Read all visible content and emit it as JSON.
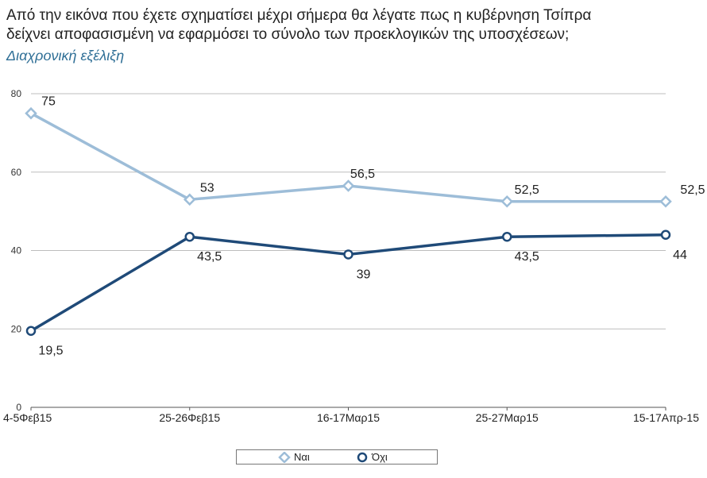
{
  "title_line1": "Από την εικόνα που έχετε σχηματίσει μέχρι σήμερα θα λέγατε πως η κυβέρνηση Τσίπρα",
  "title_line2": "δείχνει αποφασισμένη να εφαρμόσει το σύνολο των προεκλογικών της υποσχέσεων;",
  "subtitle": "Διαχρονική εξέλιξη",
  "chart_data": {
    "type": "line",
    "title": "Από την εικόνα που έχετε σχηματίσει μέχρι σήμερα θα λέγατε πως η κυβέρνηση Τσίπρα δείχνει αποφασισμένη να εφαρμόσει το σύνολο των προεκλογικών της υποσχέσεων;",
    "subtitle": "Διαχρονική εξέλιξη",
    "categories": [
      "4-5Φεβ15",
      "25-26Φεβ15",
      "16-17Μαρ15",
      "25-27Μαρ15",
      "15-17Απρ-15"
    ],
    "series": [
      {
        "name": "Ναι",
        "values": [
          75,
          53,
          56.5,
          52.5,
          52.5
        ],
        "labels": [
          "75",
          "53",
          "56,5",
          "52,5",
          "52,5"
        ],
        "color": "#9dbdd8",
        "marker": "diamond"
      },
      {
        "name": "Όχι",
        "values": [
          19.5,
          43.5,
          39,
          43.5,
          44
        ],
        "labels": [
          "19,5",
          "43,5",
          "39",
          "43,5",
          "44"
        ],
        "color": "#1f4a78",
        "marker": "circle"
      }
    ],
    "ylim": [
      0,
      80
    ],
    "yticks": [
      0,
      20,
      40,
      60,
      80
    ],
    "grid": true,
    "legend": "bottom"
  }
}
